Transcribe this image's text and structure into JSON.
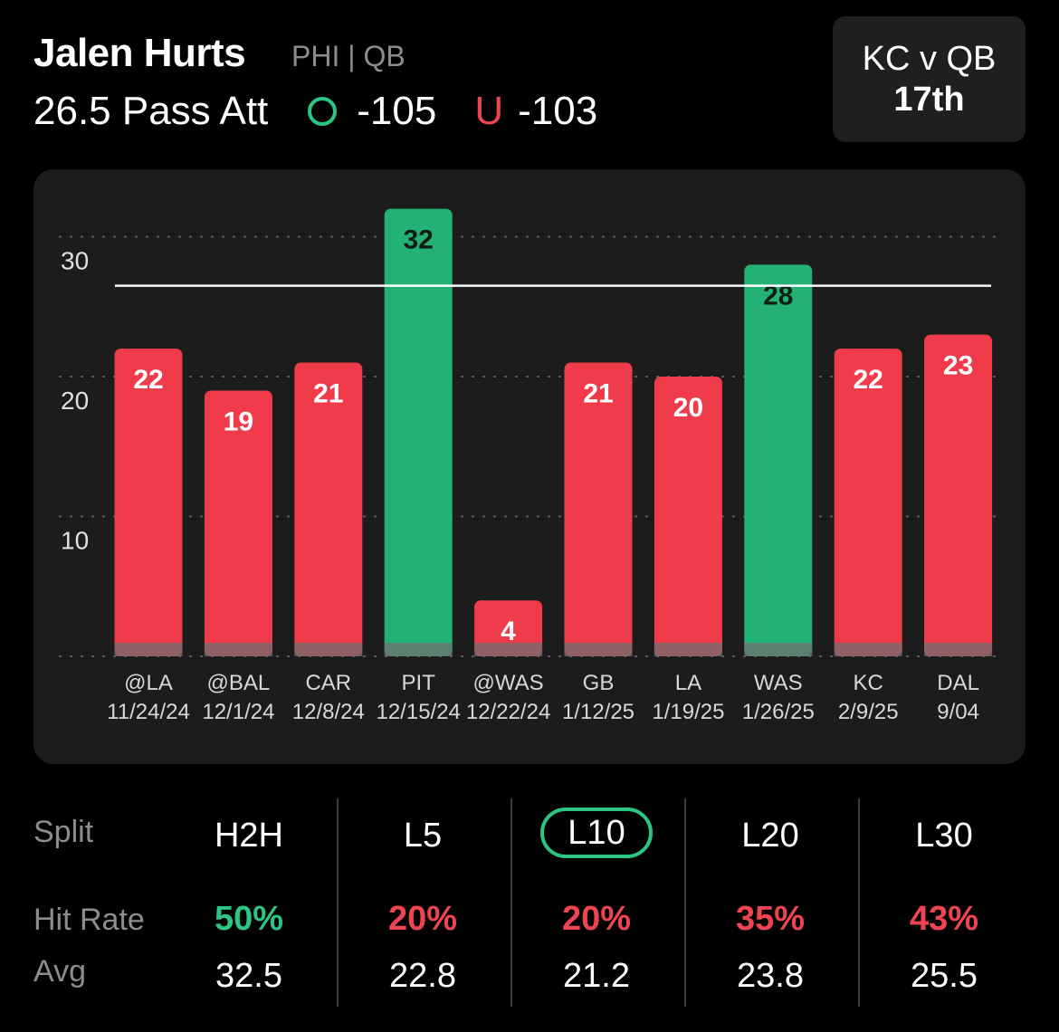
{
  "header": {
    "player_name": "Jalen Hurts",
    "team_position": "PHI | QB",
    "line": "26.5 Pass Att",
    "over_odds": "-105",
    "under_symbol": "U",
    "under_odds": "-103"
  },
  "matchup": {
    "label": "KC v QB",
    "rank": "17th"
  },
  "chart_data": {
    "type": "bar",
    "categories": [
      "@LA 11/24/24",
      "@BAL 12/1/24",
      "CAR 12/8/24",
      "PIT 12/15/24",
      "@WAS 12/22/24",
      "GB 1/12/25",
      "LA 1/19/25",
      "WAS 1/26/25",
      "KC 2/9/25",
      "DAL 9/04"
    ],
    "opponents": [
      "@LA",
      "@BAL",
      "CAR",
      "PIT",
      "@WAS",
      "GB",
      "LA",
      "WAS",
      "KC",
      "DAL"
    ],
    "dates": [
      "11/24/24",
      "12/1/24",
      "12/8/24",
      "12/15/24",
      "12/22/24",
      "1/12/25",
      "1/19/25",
      "1/26/25",
      "2/9/25",
      "9/04"
    ],
    "values": [
      22,
      19,
      21,
      32,
      4,
      21,
      20,
      28,
      22,
      23
    ],
    "hit": [
      false,
      false,
      false,
      true,
      false,
      false,
      false,
      true,
      false,
      false
    ],
    "line_value": 26.5,
    "yticks": [
      10,
      20,
      30
    ],
    "ylim": [
      0,
      30
    ],
    "grid": true,
    "colors": {
      "over": "#24b274",
      "under": "#ef3b4a",
      "base": "#6f6f6f"
    }
  },
  "splits": {
    "row_labels": {
      "split": "Split",
      "hit_rate": "Hit Rate",
      "avg": "Avg"
    },
    "columns": [
      {
        "name": "H2H",
        "hit_rate": "50%",
        "avg": "32.5",
        "status": "good",
        "active": false
      },
      {
        "name": "L5",
        "hit_rate": "20%",
        "avg": "22.8",
        "status": "bad",
        "active": false
      },
      {
        "name": "L10",
        "hit_rate": "20%",
        "avg": "21.2",
        "status": "bad",
        "active": true
      },
      {
        "name": "L20",
        "hit_rate": "35%",
        "avg": "23.8",
        "status": "bad",
        "active": false
      },
      {
        "name": "L30",
        "hit_rate": "43%",
        "avg": "25.5",
        "status": "bad",
        "active": false
      }
    ],
    "colors": {
      "good": "#2bc684",
      "bad": "#ef4451"
    }
  }
}
